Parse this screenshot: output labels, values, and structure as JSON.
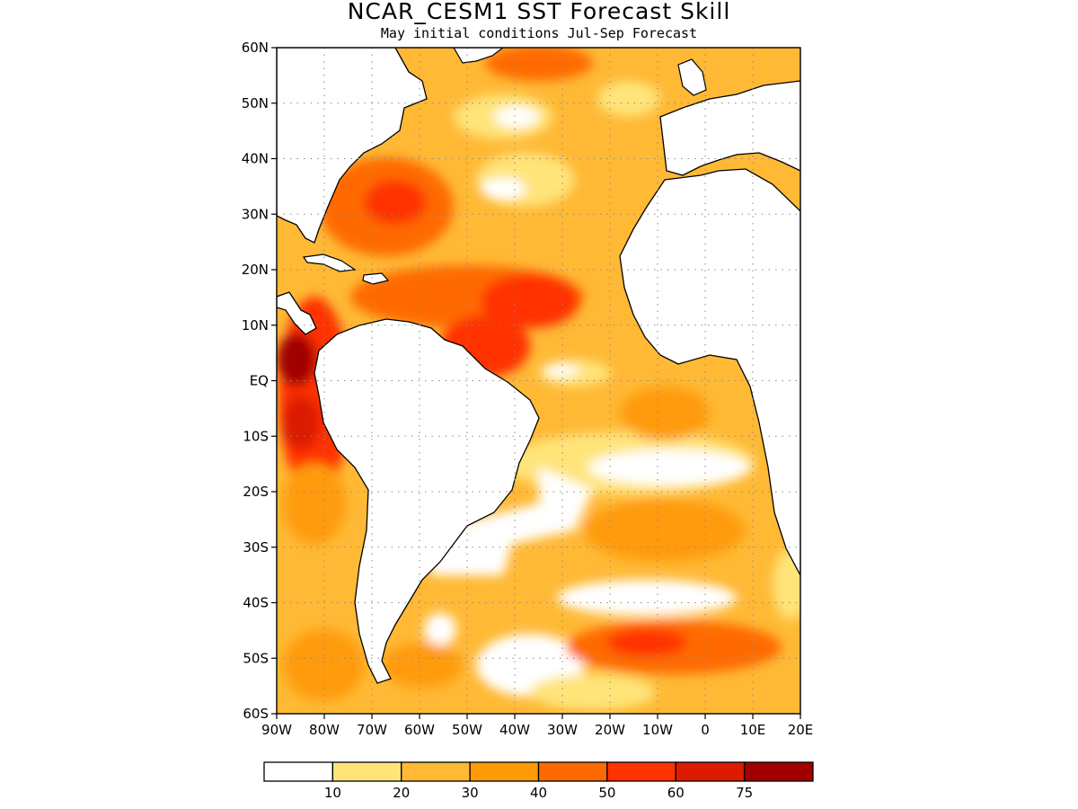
{
  "title": "NCAR_CESM1  SST Forecast Skill",
  "subtitle": "May initial conditions   Jul-Sep Forecast",
  "map": {
    "lat_labels": [
      "60N",
      "50N",
      "40N",
      "30N",
      "20N",
      "10N",
      "EQ",
      "10S",
      "20S",
      "30S",
      "40S",
      "50S",
      "60S"
    ],
    "lon_labels": [
      "90W",
      "80W",
      "70W",
      "60W",
      "50W",
      "40W",
      "30W",
      "20W",
      "10W",
      "0",
      "10E",
      "20E"
    ],
    "lat_range": [
      -60,
      60
    ],
    "lon_range": [
      -90,
      20
    ],
    "grid": "dotted"
  },
  "colorbar": {
    "ticks": [
      "10",
      "20",
      "30",
      "40",
      "50",
      "60",
      "75"
    ],
    "bins": [
      {
        "color": "#ffffff"
      },
      {
        "color": "#ffe47a"
      },
      {
        "color": "#ffb935"
      },
      {
        "color": "#ff9b07"
      },
      {
        "color": "#ff6a00"
      },
      {
        "color": "#ff3300"
      },
      {
        "color": "#dc1b00"
      },
      {
        "color": "#a20000"
      }
    ]
  },
  "colors": {
    "land": "#ffffff",
    "coast": "#000000",
    "grid": "#8a8a8a"
  }
}
